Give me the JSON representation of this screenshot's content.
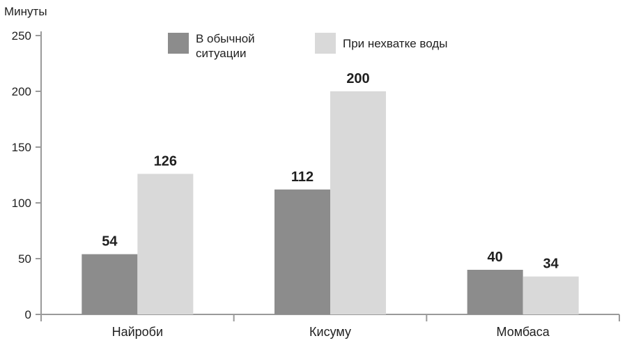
{
  "chart_data": {
    "type": "bar",
    "title": "",
    "ylabel": "Минуты",
    "xlabel": "",
    "ylim": [
      0,
      250
    ],
    "yticks": [
      0,
      50,
      100,
      150,
      200,
      250
    ],
    "grid": false,
    "legend_position": "top",
    "categories": [
      "Найроби",
      "Кисуму",
      "Момбаса"
    ],
    "series": [
      {
        "name": "В обычной ситуации",
        "legend_lines": [
          "В обычной",
          "ситуации"
        ],
        "values": [
          54,
          112,
          40
        ],
        "color": "#8c8c8c"
      },
      {
        "name": "При нехватке воды",
        "legend_lines": [
          "При нехватке воды"
        ],
        "values": [
          126,
          200,
          34
        ],
        "color": "#d9d9d9"
      }
    ]
  }
}
